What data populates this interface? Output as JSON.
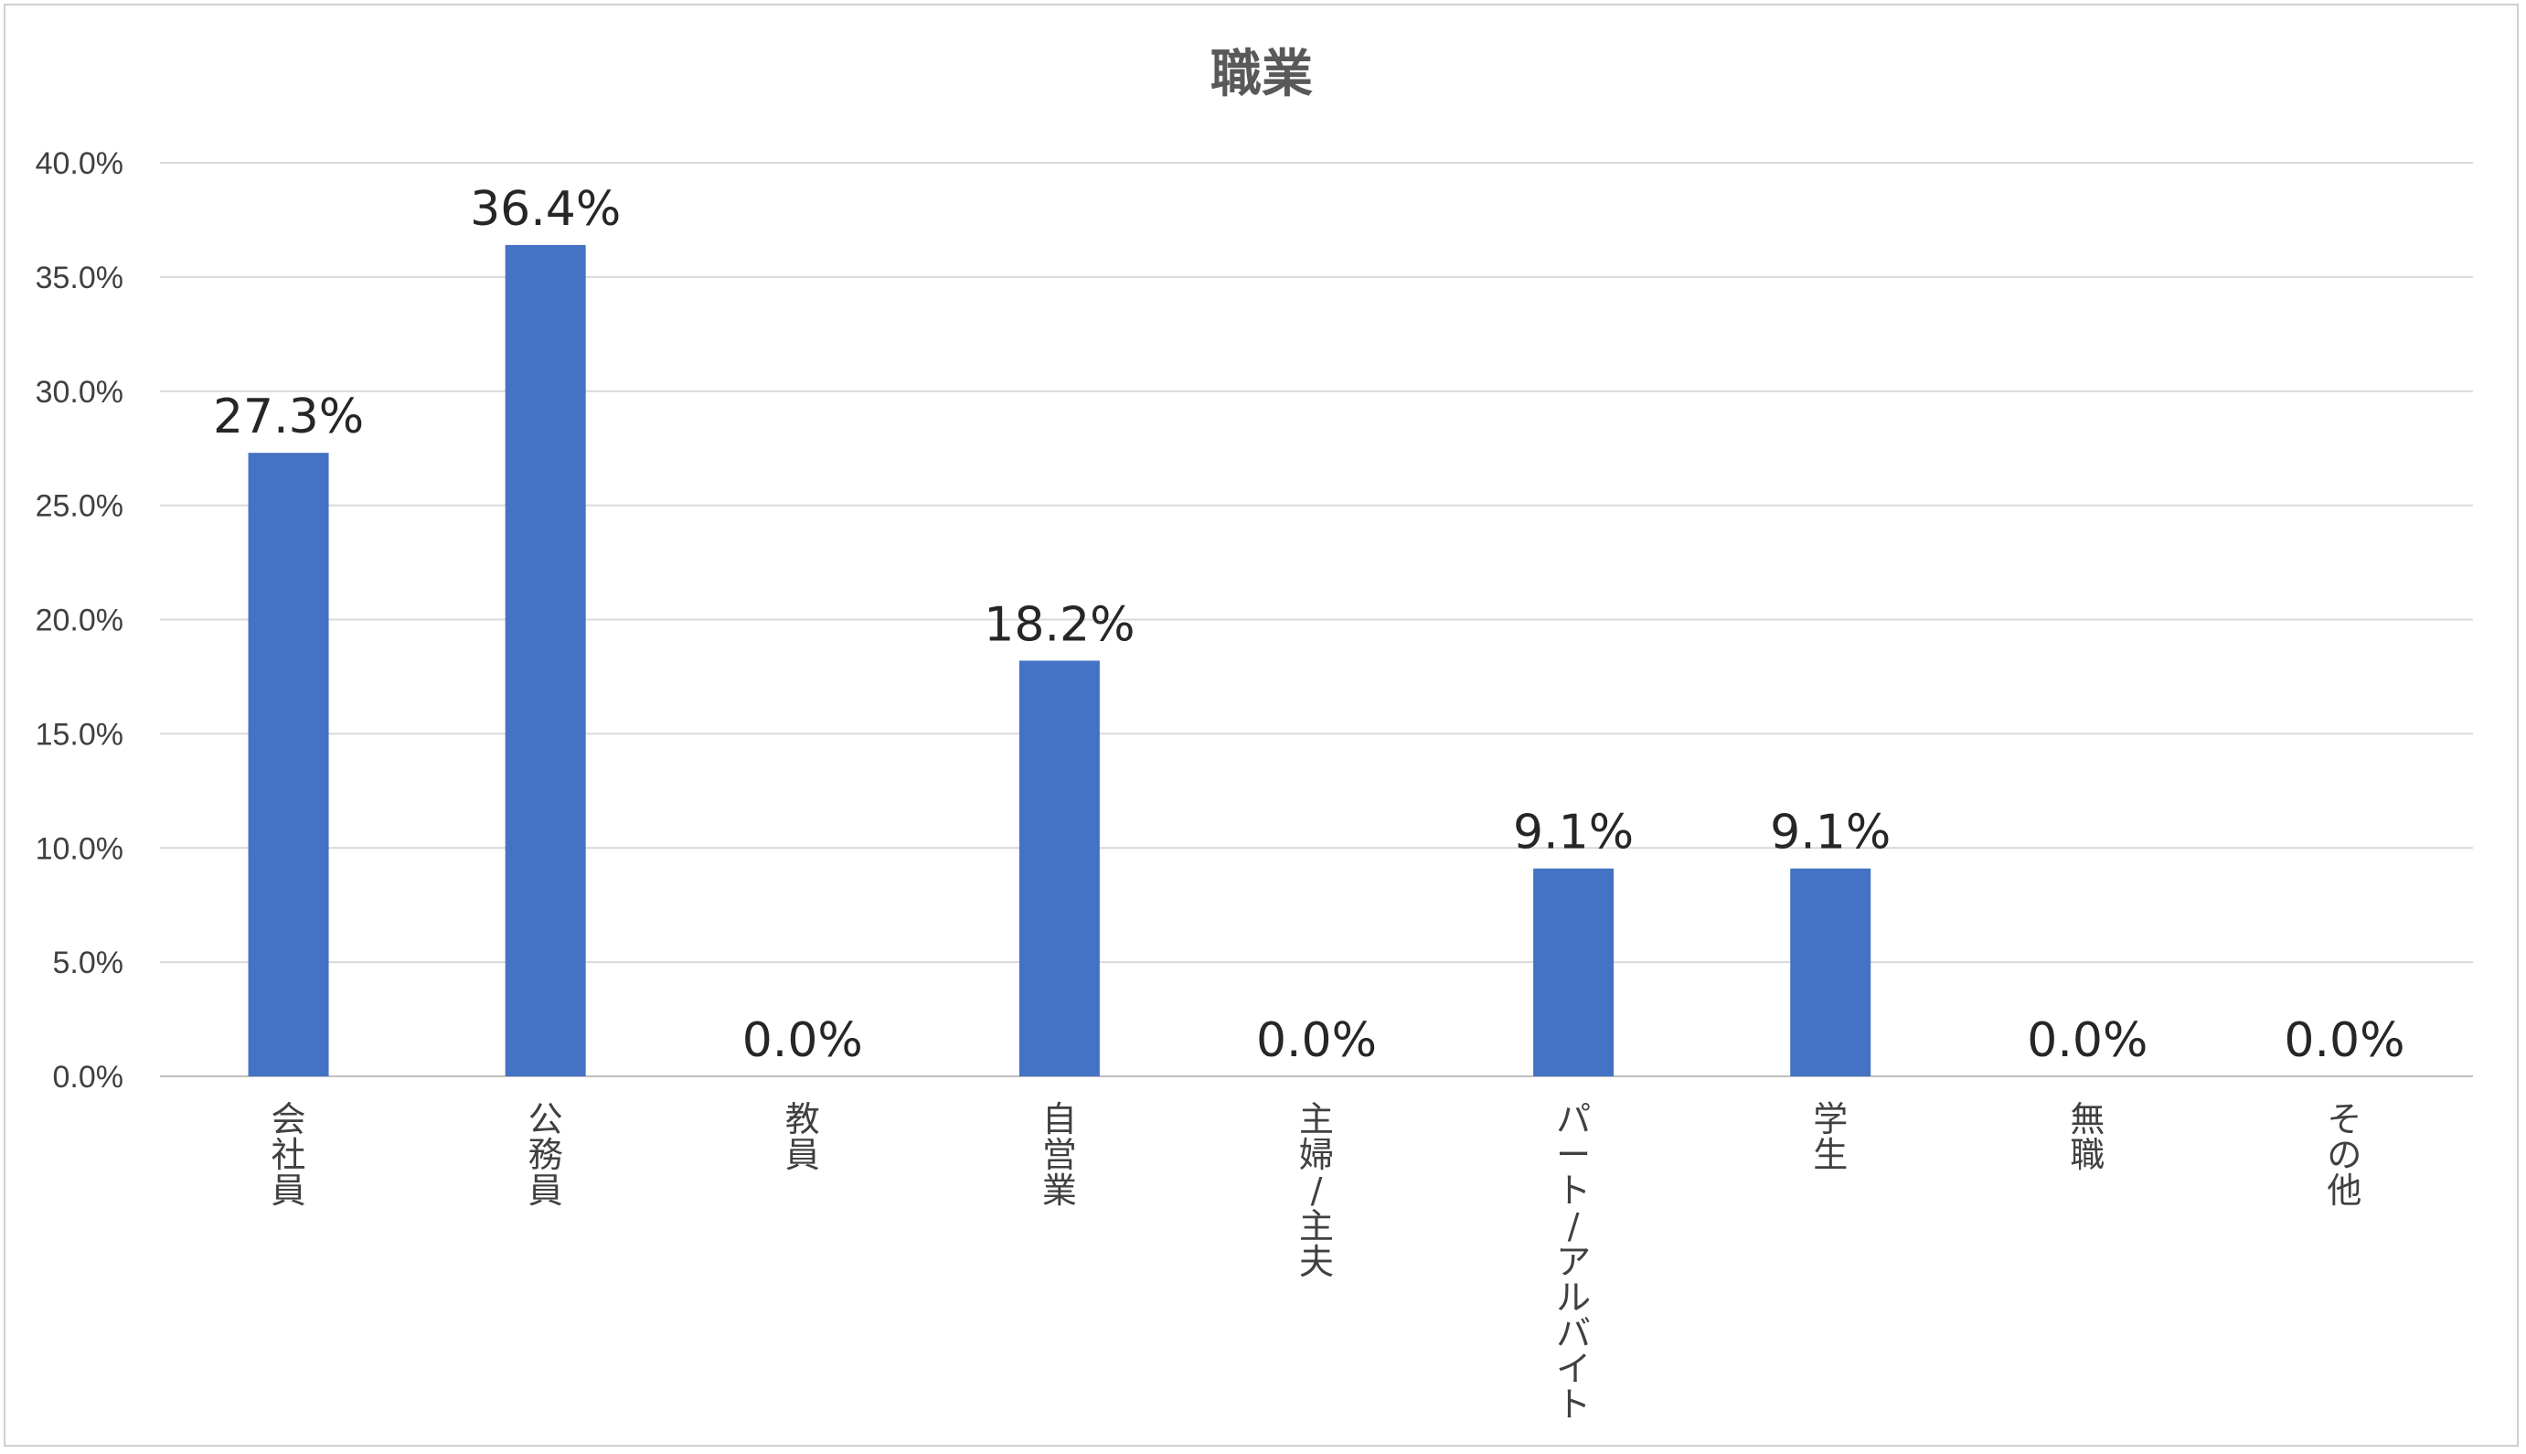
{
  "chart_data": {
    "type": "bar",
    "title": "職業",
    "xlabel": "",
    "ylabel": "",
    "categories": [
      "会社員",
      "公務員",
      "教員",
      "自営業",
      "主婦/主夫",
      "パート/アルバイト",
      "学生",
      "無職",
      "その他"
    ],
    "values": [
      27.3,
      36.4,
      0.0,
      18.2,
      0.0,
      9.1,
      9.1,
      0.0,
      0.0
    ],
    "data_labels": [
      "27.3%",
      "36.4%",
      "0.0%",
      "18.2%",
      "0.0%",
      "9.1%",
      "9.1%",
      "0.0%",
      "0.0%"
    ],
    "ylim": [
      0,
      40
    ],
    "yticks": [
      "0.0%",
      "5.0%",
      "10.0%",
      "15.0%",
      "20.0%",
      "25.0%",
      "30.0%",
      "35.0%",
      "40.0%"
    ],
    "grid": true,
    "legend": "none",
    "colors": {
      "bar": "#4472C4",
      "grid": "#d9d9d9",
      "axis": "#bfbfbf"
    }
  }
}
